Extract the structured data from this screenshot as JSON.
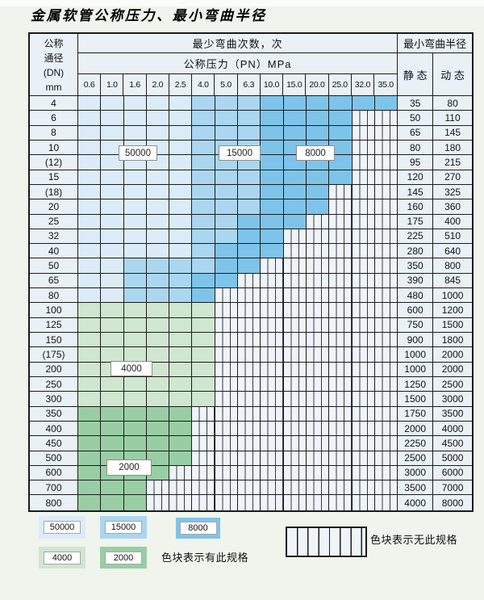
{
  "title": "金属软管公称压力、最小弯曲半径",
  "colors": {
    "blue_light": "#dbecf8",
    "blue_mid": "#abd6f0",
    "blue_dark": "#7ec4ea",
    "green_light": "#cfe6cf",
    "green_mid": "#99cea4",
    "cell_bg": "#e9f1f7",
    "hatch_bg": "#eef4fa"
  },
  "table": {
    "header": {
      "dn_lines": [
        "公称",
        "通径",
        "(DN)",
        "mm"
      ],
      "bend_cycles": "最少弯曲次数，次",
      "pressure_title": "公称压力（PN）MPa",
      "pressures": [
        "0.6",
        "1.0",
        "1.6",
        "2.0",
        "2.5",
        "4.0",
        "5.0",
        "6.3",
        "10.0",
        "15.0",
        "20.0",
        "25.0",
        "32.0",
        "35.0"
      ],
      "min_bend_radius": "最小弯曲半径",
      "static_label": "静 态",
      "dynamic_label": "动 态"
    },
    "rows": [
      {
        "dn": "4",
        "cells": "LLLLLMMMDDDDDD",
        "static": "35",
        "dynamic": "80"
      },
      {
        "dn": "6",
        "cells": "LLLLLMMMDDDDxx",
        "static": "50",
        "dynamic": "110"
      },
      {
        "dn": "8",
        "cells": "LLLLLMMMDDDDxx",
        "static": "65",
        "dynamic": "145"
      },
      {
        "dn": "10",
        "cells": "LLLLLMMMDDDDxx",
        "static": "80",
        "dynamic": "180"
      },
      {
        "dn": "(12)",
        "cells": "LLLLLMMMDDDDxx",
        "static": "95",
        "dynamic": "215"
      },
      {
        "dn": "15",
        "cells": "LLLLLMMMDDDDxx",
        "static": "120",
        "dynamic": "270"
      },
      {
        "dn": "(18)",
        "cells": "LLLLLMMMDDDxxx",
        "static": "145",
        "dynamic": "325"
      },
      {
        "dn": "20",
        "cells": "LLLLLMMMDDDxxx",
        "static": "160",
        "dynamic": "360"
      },
      {
        "dn": "25",
        "cells": "LLLLLMMDDDxxxx",
        "static": "175",
        "dynamic": "400"
      },
      {
        "dn": "32",
        "cells": "LLLLLMMDDxxxxx",
        "static": "225",
        "dynamic": "510"
      },
      {
        "dn": "40",
        "cells": "LLLLLMDDDxxxxx",
        "static": "280",
        "dynamic": "640"
      },
      {
        "dn": "50",
        "cells": "LLMMMMDDxxxxxx",
        "static": "350",
        "dynamic": "800"
      },
      {
        "dn": "65",
        "cells": "LLMMMDDxxxxxxx",
        "static": "390",
        "dynamic": "845"
      },
      {
        "dn": "80",
        "cells": "LLMMMDxxxxxxxx",
        "static": "480",
        "dynamic": "1000"
      },
      {
        "dn": "100",
        "cells": "ggggggxxxxxxxx",
        "static": "600",
        "dynamic": "1200"
      },
      {
        "dn": "125",
        "cells": "ggggggxxxxxxxx",
        "static": "750",
        "dynamic": "1500"
      },
      {
        "dn": "150",
        "cells": "ggggggxxxxxxxx",
        "static": "900",
        "dynamic": "1800"
      },
      {
        "dn": "(175)",
        "cells": "ggggggxxxxxxxx",
        "static": "1000",
        "dynamic": "2000"
      },
      {
        "dn": "200",
        "cells": "ggggggxxxxxxxx",
        "static": "1000",
        "dynamic": "2000"
      },
      {
        "dn": "250",
        "cells": "ggggggxxxxxxxx",
        "static": "1250",
        "dynamic": "2500"
      },
      {
        "dn": "300",
        "cells": "ggggggxxxxxxxx",
        "static": "1500",
        "dynamic": "3000"
      },
      {
        "dn": "350",
        "cells": "GGGGGxxxxxxxxx",
        "static": "1750",
        "dynamic": "3500"
      },
      {
        "dn": "400",
        "cells": "GGGGGxxxxxxxxx",
        "static": "2000",
        "dynamic": "4000"
      },
      {
        "dn": "450",
        "cells": "GGGGGxxxxxxxxx",
        "static": "2250",
        "dynamic": "4500"
      },
      {
        "dn": "500",
        "cells": "GGGGGxxxxxxxxx",
        "static": "2500",
        "dynamic": "5000"
      },
      {
        "dn": "600",
        "cells": "GGGGxxxxxxxxxx",
        "static": "3000",
        "dynamic": "6000"
      },
      {
        "dn": "700",
        "cells": "GGGxxxxxxxxxxx",
        "static": "3500",
        "dynamic": "7000"
      },
      {
        "dn": "800",
        "cells": "GGGxxxxxxxxxxx",
        "static": "4000",
        "dynamic": "8000"
      }
    ]
  },
  "zone_labels": [
    "50000",
    "15000",
    "8000",
    "4000",
    "2000"
  ],
  "legend": {
    "swatches": [
      {
        "value": "50000",
        "color": "blue_light"
      },
      {
        "value": "15000",
        "color": "blue_mid"
      },
      {
        "value": "8000",
        "color": "blue_dark"
      },
      {
        "value": "4000",
        "color": "green_light"
      },
      {
        "value": "2000",
        "color": "green_mid"
      }
    ],
    "has_spec_label": "色块表示有此规格",
    "no_spec_label": "色块表示无此规格"
  }
}
